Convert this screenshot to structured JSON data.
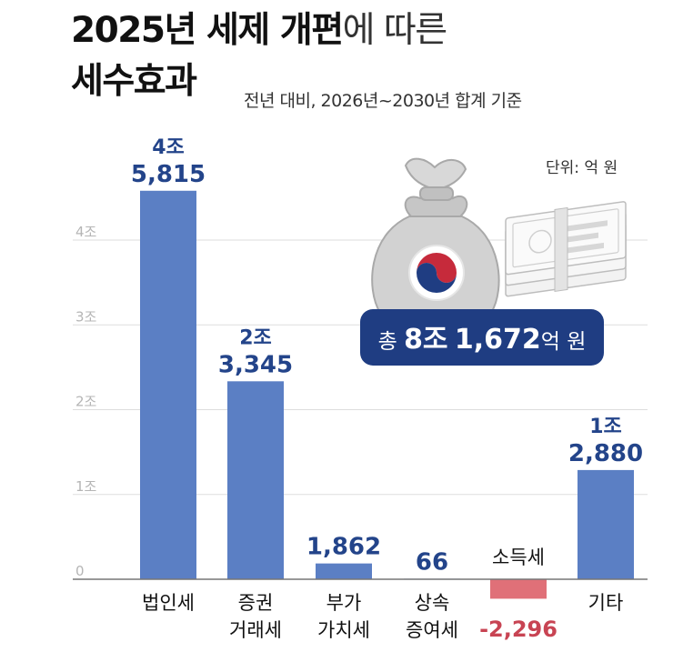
{
  "title": {
    "line1_bold": "2025년 세제 개편",
    "line1_rest": "에 따른",
    "line2": "세수효과"
  },
  "subtitle": "전년 대비, 2026년~2030년 합계 기준",
  "unit": "단위: 억 원",
  "total_badge": {
    "prefix": "총",
    "value1": "8조",
    "value2": "1,672",
    "suffix": "억 원"
  },
  "colors": {
    "positive_bar": "#5b7fc4",
    "negative_bar": "#e07078",
    "positive_label": "#23448a",
    "negative_label": "#c84453",
    "badge_bg": "#1f3d82",
    "grid": "#dddddd"
  },
  "icons": [
    "money-bag-icon",
    "taegeuk-emblem-icon",
    "banknote-stack-icon"
  ],
  "chart_data": {
    "type": "bar",
    "categories": [
      [
        "법인세"
      ],
      [
        "증권",
        "거래세"
      ],
      [
        "부가",
        "가치세"
      ],
      [
        "상속",
        "증여세"
      ],
      [
        "소득세"
      ],
      [
        "기타"
      ]
    ],
    "values": [
      45815,
      23345,
      1862,
      66,
      -2296,
      12880
    ],
    "value_labels": [
      [
        "4조",
        "5,815"
      ],
      [
        "2조",
        "3,345"
      ],
      [
        "1,862"
      ],
      [
        "66"
      ],
      [
        "-2,296"
      ],
      [
        "1조",
        "2,880"
      ]
    ],
    "y_ticks": [
      0,
      10000,
      20000,
      30000,
      40000
    ],
    "y_tick_labels": [
      "0",
      "1조",
      "2조",
      "3조",
      "4조"
    ],
    "ylim": [
      -4000,
      52000
    ],
    "grid": true
  }
}
